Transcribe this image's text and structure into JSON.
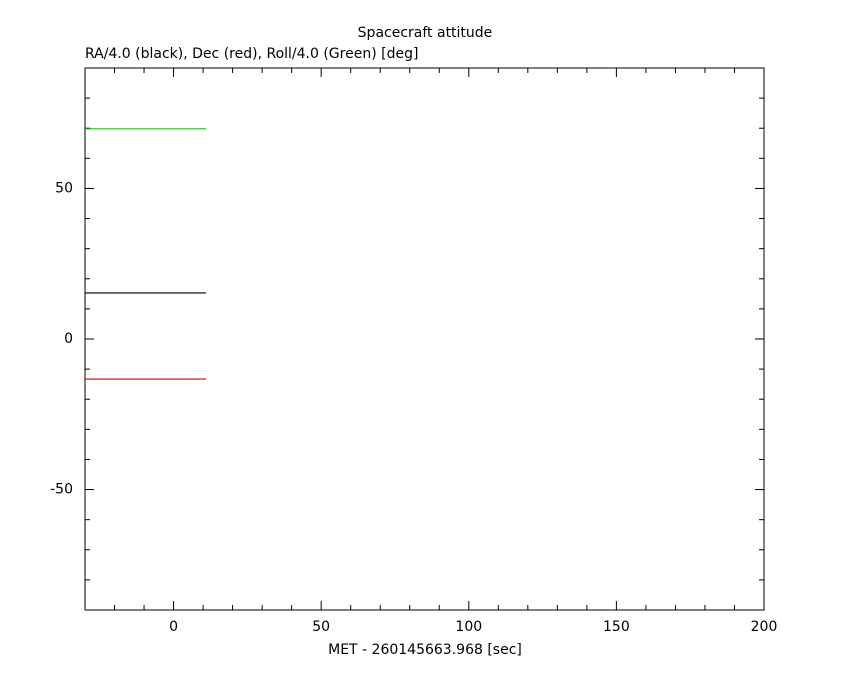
{
  "chart_data": {
    "type": "line",
    "title": "Spacecraft attitude",
    "subtitle": "RA/4.0 (black), Dec (red), Roll/4.0 (Green) [deg]",
    "x_label": "MET - 260145663.968 [sec]",
    "xlim": [
      -30,
      200
    ],
    "xticks": [
      0,
      50,
      100,
      150,
      200
    ],
    "xticks_minor": [
      -20,
      -10,
      10,
      20,
      30,
      40,
      60,
      70,
      80,
      90,
      110,
      120,
      130,
      140,
      160,
      170,
      180,
      190
    ],
    "ylim": [
      -90,
      90
    ],
    "yticks": [
      -50,
      0,
      50
    ],
    "yticks_minor": [
      -80,
      -70,
      -60,
      -40,
      -30,
      -20,
      -10,
      10,
      20,
      30,
      40,
      60,
      70,
      80
    ],
    "series": [
      {
        "color": "#000000",
        "x": [
          -30,
          11
        ],
        "values": [
          15.3,
          15.3
        ]
      },
      {
        "color": "#cc0000",
        "x": [
          -30,
          11
        ],
        "values": [
          -13.3,
          -13.3
        ]
      },
      {
        "color": "#00cc00",
        "x": [
          -30,
          11
        ],
        "values": [
          69.8,
          69.8
        ]
      }
    ]
  }
}
